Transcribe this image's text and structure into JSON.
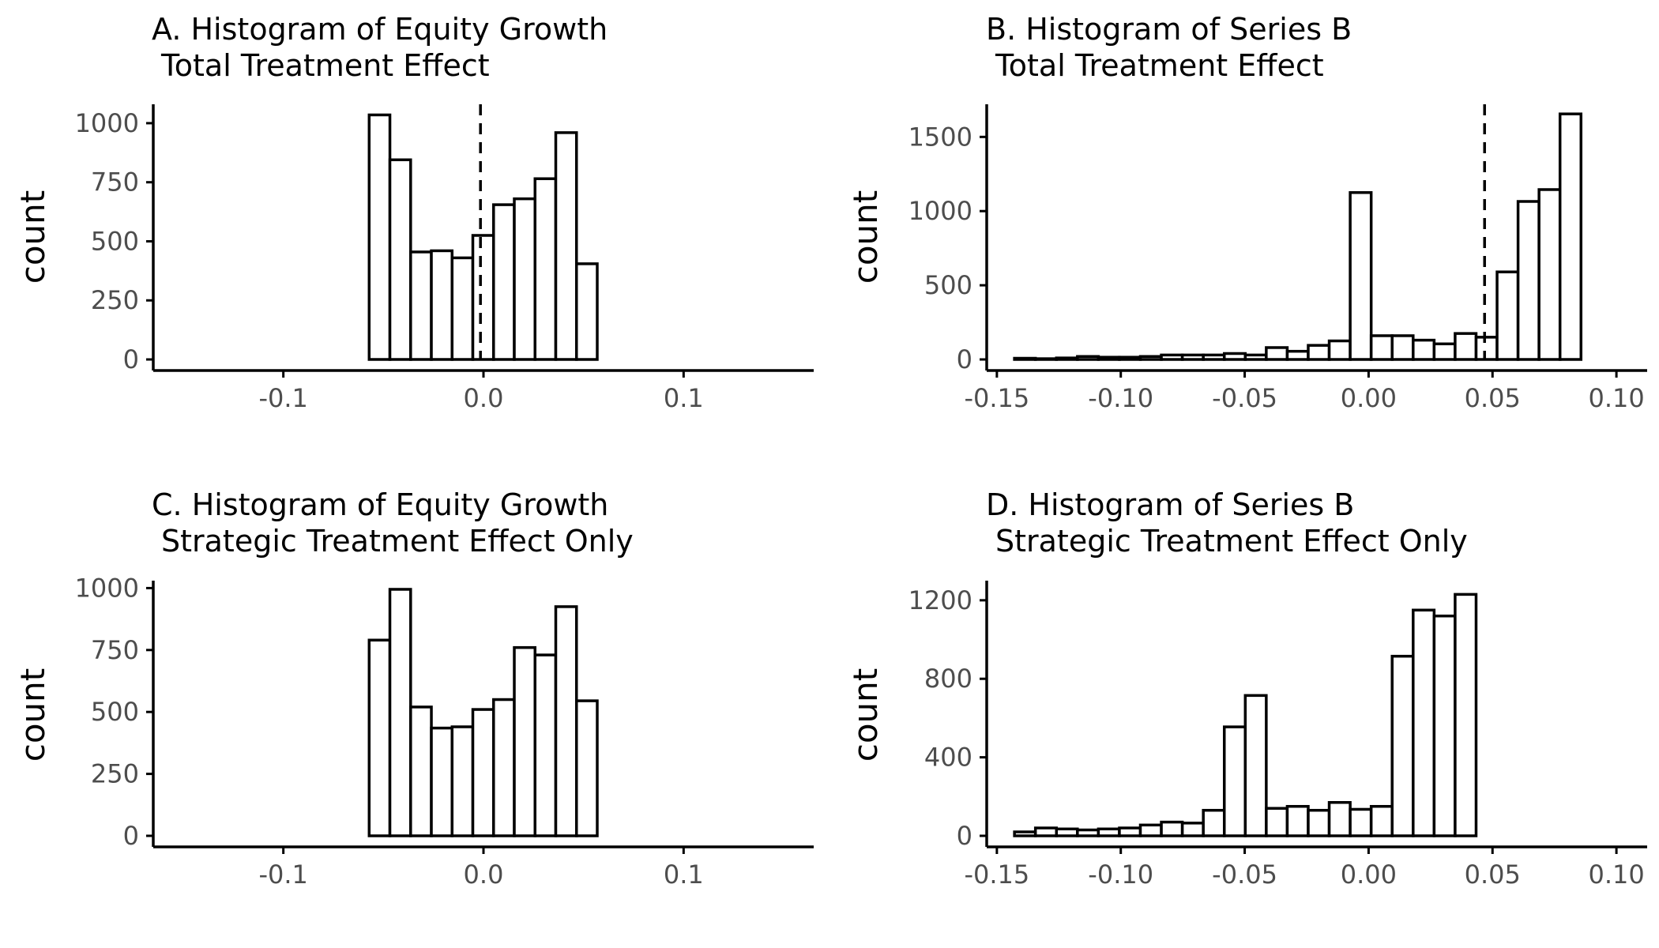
{
  "colors": {
    "bar_fill": "#ffffff",
    "bar_stroke": "#000000",
    "tick_text": "#4d4d4d",
    "axis": "#000000"
  },
  "chart_data": [
    {
      "type": "bar",
      "panel": "A",
      "title_line1": "A. Histogram of Equity Growth",
      "title_line2": "Total Treatment Effect",
      "xlabel": "",
      "ylabel": "count",
      "xlim": [
        -0.165,
        0.165
      ],
      "ylim": [
        0,
        1080
      ],
      "x_ticks": [
        -0.1,
        0.0,
        0.1
      ],
      "x_tick_labels": [
        "-0.1",
        "0.0",
        "0.1"
      ],
      "y_ticks": [
        0,
        250,
        500,
        750,
        1000
      ],
      "y_tick_labels": [
        "0",
        "250",
        "500",
        "750",
        "1000"
      ],
      "bin_start": -0.14,
      "bin_width": 0.01036,
      "counts": [
        0,
        0,
        0,
        0,
        0,
        0,
        0,
        0,
        1035,
        845,
        455,
        460,
        430,
        525,
        655,
        680,
        765,
        960,
        405,
        0,
        0,
        0,
        0,
        0,
        0,
        0,
        0,
        0,
        0
      ],
      "vline": -0.0015
    },
    {
      "type": "bar",
      "panel": "B",
      "title_line1": "B. Histogram of Series B",
      "title_line2": "Total Treatment Effect",
      "xlabel": "",
      "ylabel": "count",
      "xlim": [
        -0.1541,
        0.1124
      ],
      "ylim": [
        0,
        1720
      ],
      "x_ticks": [
        -0.15,
        -0.1,
        -0.05,
        0.0,
        0.05,
        0.1
      ],
      "x_tick_labels": [
        "-0.15",
        "-0.10",
        "-0.05",
        "0.00",
        "0.05",
        "0.10"
      ],
      "y_ticks": [
        0,
        500,
        1000,
        1500
      ],
      "y_tick_labels": [
        "0",
        "500",
        "1000",
        "1500"
      ],
      "bin_start": -0.1429,
      "bin_width": 0.008467,
      "counts": [
        8,
        5,
        10,
        20,
        15,
        15,
        20,
        30,
        30,
        30,
        40,
        30,
        80,
        55,
        95,
        125,
        1125,
        160,
        160,
        130,
        105,
        175,
        150,
        590,
        1065,
        1145,
        1655
      ],
      "vline": 0.0468
    },
    {
      "type": "bar",
      "panel": "C",
      "title_line1": "C. Histogram of Equity Growth",
      "title_line2": "Strategic Treatment Effect Only",
      "xlabel": "",
      "ylabel": "count",
      "xlim": [
        -0.165,
        0.165
      ],
      "ylim": [
        0,
        1030
      ],
      "x_ticks": [
        -0.1,
        0.0,
        0.1
      ],
      "x_tick_labels": [
        "-0.1",
        "0.0",
        "0.1"
      ],
      "y_ticks": [
        0,
        250,
        500,
        750,
        1000
      ],
      "y_tick_labels": [
        "0",
        "250",
        "500",
        "750",
        "1000"
      ],
      "bin_start": -0.14,
      "bin_width": 0.01036,
      "counts": [
        0,
        0,
        0,
        0,
        0,
        0,
        0,
        0,
        790,
        995,
        520,
        435,
        440,
        510,
        550,
        760,
        730,
        925,
        545,
        0,
        0,
        0,
        0,
        0,
        0,
        0,
        0,
        0,
        0
      ]
    },
    {
      "type": "bar",
      "panel": "D",
      "title_line1": "D. Histogram of Series B",
      "title_line2": "Strategic Treatment Effect Only",
      "xlabel": "",
      "ylabel": "count",
      "xlim": [
        -0.1541,
        0.1124
      ],
      "ylim": [
        0,
        1300
      ],
      "x_ticks": [
        -0.15,
        -0.1,
        -0.05,
        0.0,
        0.05,
        0.1
      ],
      "x_tick_labels": [
        "-0.15",
        "-0.10",
        "-0.05",
        "0.00",
        "0.05",
        "0.10"
      ],
      "y_ticks": [
        0,
        400,
        800,
        1200
      ],
      "y_tick_labels": [
        "0",
        "400",
        "800",
        "1200"
      ],
      "bin_start": -0.1429,
      "bin_width": 0.008467,
      "counts": [
        20,
        40,
        35,
        30,
        35,
        40,
        55,
        70,
        65,
        130,
        555,
        715,
        140,
        150,
        130,
        170,
        135,
        150,
        915,
        1150,
        1120,
        1230,
        0,
        0,
        0,
        0,
        0,
        0,
        0,
        0,
        0,
        0
      ]
    }
  ]
}
